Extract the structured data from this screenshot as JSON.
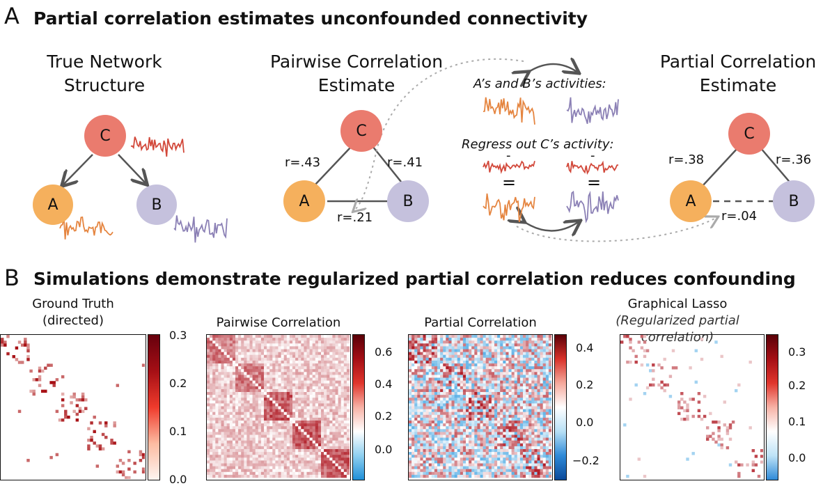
{
  "panelA": {
    "letter": "A",
    "title": "Partial correlation estimates unconfounded connectivity",
    "true_network": {
      "title_line1": "True Network",
      "title_line2": "Structure"
    },
    "pairwise": {
      "title_line1": "Pairwise Correlation",
      "title_line2": "Estimate",
      "r_ac": "r=.43",
      "r_bc": "r=.41",
      "r_ab": "r=.21"
    },
    "partial": {
      "title_line1": "Partial Correlation",
      "title_line2": "Estimate",
      "r_ac": "r=.38",
      "r_bc": "r=.36",
      "r_ab": "r=.04"
    },
    "explain": {
      "line1": "A’s and B’s activities:",
      "line2": "Regress out C’s activity:",
      "minus": "-",
      "equals": "="
    },
    "nodes": {
      "a": "A",
      "b": "B",
      "c": "C"
    },
    "colors": {
      "c": "#ea7b6e",
      "a": "#f5b05d",
      "b": "#c5c1dd",
      "trace_c": "#d2483a",
      "trace_a": "#e58540",
      "trace_b": "#8b80b5"
    }
  },
  "panelB": {
    "letter": "B",
    "title": "Simulations demonstrate regularized partial correlation reduces confounding",
    "matrices": [
      {
        "title_line1": "Ground Truth",
        "title_line2": "(directed)",
        "ticks": [
          "0.3",
          "0.2",
          "0.1",
          "0.0"
        ]
      },
      {
        "title_line1": "Pairwise Correlation",
        "title_line2": "",
        "ticks": [
          "0.6",
          "0.4",
          "0.2",
          "0.0"
        ]
      },
      {
        "title_line1": "Partial Correlation",
        "title_line2": "",
        "ticks": [
          "0.4",
          "0.2",
          "0.0",
          "−0.2"
        ]
      },
      {
        "title_line1": "Graphical Lasso",
        "title_line2": "(Regularized partial correlation)",
        "ticks": [
          "0.3",
          "0.2",
          "0.1",
          "0.0"
        ]
      }
    ]
  }
}
